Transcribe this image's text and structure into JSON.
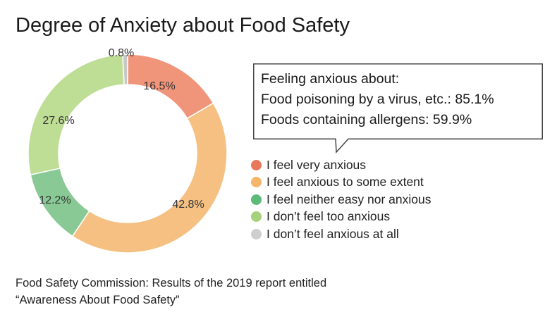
{
  "title": "Degree of Anxiety about Food Safety",
  "chart_data": {
    "type": "pie",
    "variant": "donut",
    "slices": [
      {
        "label": "I feel very anxious",
        "value": 16.5,
        "value_label": "16.5%",
        "color": "#f0957a"
      },
      {
        "label": "I feel anxious to some extent",
        "value": 42.8,
        "value_label": "42.8%",
        "color": "#f6c083"
      },
      {
        "label": "I feel neither easy nor anxious",
        "value": 12.2,
        "value_label": "12.2%",
        "color": "#89c995"
      },
      {
        "label": "I don’t feel too anxious",
        "value": 27.6,
        "value_label": "27.6%",
        "color": "#bedd95"
      },
      {
        "label": "I don’t feel anxious at all",
        "value": 0.8,
        "value_label": "0.8%",
        "color": "#c8c8c8"
      }
    ],
    "legend_position": "right"
  },
  "legend_colors": [
    "#e8785a",
    "#f5b56a",
    "#5dba78",
    "#a6d17a",
    "#cfcfcf"
  ],
  "callout": {
    "lines": [
      "Feeling anxious about:",
      "Food poisoning by a virus, etc.: 85.1%",
      "Foods containing allergens: 59.9%"
    ]
  },
  "source": {
    "line1": "Food Safety Commission: Results of the 2019 report entitled",
    "line2": "“Awareness About Food Safety”"
  }
}
